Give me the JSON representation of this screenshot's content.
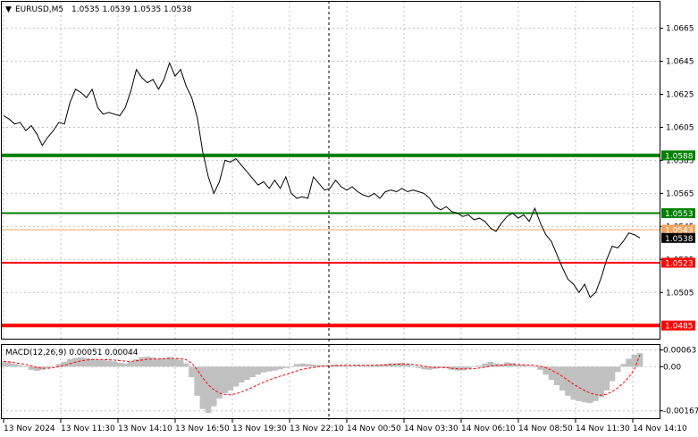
{
  "header": {
    "symbol": "EURUSD,M5",
    "ohlc": "1.0535 1.0539 1.0535 1.0538",
    "dropdown_glyph": "▼"
  },
  "colors": {
    "price_line": "#000000",
    "grid": "#c0c0c0",
    "green_level": "#008000",
    "red_level": "#ff0000",
    "bid_line": "#f4a460",
    "macd_hist": "#c0c0c0",
    "macd_signal": "#ff0000"
  },
  "chart_data": [
    {
      "type": "line",
      "title": "EURUSD,M5",
      "y_ticks": [
        "1.0665",
        "1.0645",
        "1.0625",
        "1.0605",
        "1.0585",
        "1.0565",
        "1.0545",
        "1.0525",
        "1.0505"
      ],
      "x_ticks": [
        "13 Nov 2024",
        "13 Nov 11:30",
        "13 Nov 14:10",
        "13 Nov 16:50",
        "13 Nov 19:30",
        "13 Nov 22:10",
        "14 Nov 00:50",
        "14 Nov 03:30",
        "14 Nov 06:10",
        "14 Nov 08:50",
        "14 Nov 11:30",
        "14 Nov 14:10"
      ],
      "ylim": [
        1.0477,
        1.0681
      ],
      "grid": true,
      "price_series": [
        1.0612,
        1.061,
        1.0607,
        1.0608,
        1.0603,
        1.0606,
        1.0601,
        1.0594,
        1.0599,
        1.0603,
        1.0608,
        1.0607,
        1.062,
        1.0628,
        1.0626,
        1.0623,
        1.0628,
        1.0617,
        1.0613,
        1.0614,
        1.0613,
        1.0612,
        1.0617,
        1.0627,
        1.064,
        1.0635,
        1.0632,
        1.0634,
        1.0628,
        1.0634,
        1.0644,
        1.0636,
        1.064,
        1.063,
        1.0623,
        1.0611,
        1.059,
        1.0575,
        1.0565,
        1.0572,
        1.0585,
        1.0584,
        1.0586,
        1.0582,
        1.0578,
        1.0574,
        1.057,
        1.0572,
        1.0568,
        1.0573,
        1.0568,
        1.0575,
        1.0565,
        1.0562,
        1.0563,
        1.0562,
        1.0575,
        1.0571,
        1.0567,
        1.0568,
        1.0573,
        1.0569,
        1.0567,
        1.0569,
        1.0566,
        1.0564,
        1.0563,
        1.0565,
        1.0562,
        1.0566,
        1.0567,
        1.0566,
        1.0568,
        1.0566,
        1.0567,
        1.0566,
        1.0565,
        1.0562,
        1.0557,
        1.0555,
        1.0557,
        1.0554,
        1.0553,
        1.0551,
        1.0552,
        1.0549,
        1.055,
        1.0548,
        1.0544,
        1.0542,
        1.0547,
        1.0551,
        1.0553,
        1.055,
        1.0552,
        1.0548,
        1.0556,
        1.0547,
        1.054,
        1.0536,
        1.0528,
        1.052,
        1.0513,
        1.051,
        1.0505,
        1.051,
        1.0502,
        1.0505,
        1.0514,
        1.0525,
        1.0533,
        1.0532,
        1.0536,
        1.0541,
        1.054,
        1.0538
      ],
      "levels": [
        {
          "value": 1.0588,
          "label": "1.0588",
          "color": "#008000",
          "style": "thick"
        },
        {
          "value": 1.0553,
          "label": "1.0553",
          "color": "#008000",
          "style": "thin"
        },
        {
          "value": 1.0543,
          "label": "1.0543",
          "color": "#f4a460",
          "style": "thin"
        },
        {
          "value": 1.0538,
          "label": "1.0538",
          "color": "#000000",
          "style": "bid"
        },
        {
          "value": 1.0523,
          "label": "1.0523",
          "color": "#ff0000",
          "style": "thin"
        },
        {
          "value": 1.0485,
          "label": "1.0485",
          "color": "#ff0000",
          "style": "thick"
        }
      ]
    },
    {
      "type": "bar",
      "title": "MACD(12,26,9) 0.00051 0.00044",
      "y_ticks": [
        "0.00063",
        "0.00",
        "-0.00167"
      ],
      "ylim": [
        -0.00195,
        0.00082
      ],
      "histogram": [
        0.0002,
        0.00016,
        0.0001,
        5e-05,
        -2e-05,
        -0.00012,
        -0.00016,
        -0.00012,
        -5e-05,
        2e-05,
        0.0001,
        0.00018,
        0.00028,
        0.00033,
        0.00035,
        0.00032,
        0.0003,
        0.00027,
        0.00025,
        0.00023,
        0.0002,
        0.00015,
        0.00012,
        0.00018,
        0.00028,
        0.00036,
        0.00038,
        0.00034,
        0.0003,
        0.00032,
        0.00036,
        0.0003,
        0.00026,
        0.00012,
        -0.0004,
        -0.0011,
        -0.0016,
        -0.00175,
        -0.0015,
        -0.0012,
        -0.001,
        -0.0009,
        -0.00075,
        -0.0006,
        -0.0005,
        -0.0004,
        -0.0003,
        -0.00022,
        -0.00018,
        -0.00015,
        -0.0001,
        -5e-05,
        2e-05,
        0.0001,
        0.00012,
        0.0001,
        8e-05,
        6e-05,
        5e-05,
        6e-05,
        8e-05,
        6e-05,
        4e-05,
        5e-05,
        7e-05,
        6e-05,
        5e-05,
        6e-05,
        8e-05,
        0.0001,
        0.00012,
        0.00013,
        0.00014,
        0.0001,
        2e-05,
        -5e-05,
        -0.0001,
        -0.00012,
        -8e-05,
        -4e-05,
        -6e-05,
        -0.00012,
        -0.00015,
        -0.00014,
        -8e-05,
        -2e-05,
        4e-05,
        0.00012,
        0.00018,
        0.00012,
        0.0001,
        0.00016,
        0.00014,
        8e-05,
        6e-05,
        2e-05,
        0.0,
        -0.00012,
        -0.0003,
        -0.0005,
        -0.0007,
        -0.0009,
        -0.0011,
        -0.00125,
        -0.0013,
        -0.00135,
        -0.00138,
        -0.0013,
        -0.00115,
        -0.0009,
        -0.00055,
        -0.0002,
        0.0001,
        0.0003,
        0.00045,
        0.00051
      ],
      "signal": [
        0.0002,
        0.00018,
        0.00015,
        0.00012,
        8e-05,
        3e-05,
        -3e-05,
        -6e-05,
        -6e-05,
        -4e-05,
        0.0,
        5e-05,
        0.00011,
        0.00017,
        0.00022,
        0.00025,
        0.00027,
        0.00027,
        0.00027,
        0.00026,
        0.00025,
        0.00023,
        0.00021,
        0.0002,
        0.00022,
        0.00025,
        0.00028,
        0.00029,
        0.00029,
        0.0003,
        0.00031,
        0.00031,
        0.0003,
        0.00026,
        0.00013,
        -0.00012,
        -0.00042,
        -0.00069,
        -0.00087,
        -0.001,
        -0.00105,
        -0.00106,
        -0.00102,
        -0.00096,
        -0.00087,
        -0.00078,
        -0.00068,
        -0.00059,
        -0.0005,
        -0.00043,
        -0.00036,
        -0.0003,
        -0.00023,
        -0.00016,
        -0.0001,
        -6e-05,
        -3e-05,
        0.0,
        2e-05,
        3e-05,
        4e-05,
        5e-05,
        5e-05,
        5e-05,
        5e-05,
        5e-05,
        5e-05,
        5e-05,
        6e-05,
        7e-05,
        8e-05,
        9e-05,
        0.0001,
        0.0001,
        8e-05,
        5e-05,
        2e-05,
        -1e-05,
        -3e-05,
        -3e-05,
        -4e-05,
        -6e-05,
        -8e-05,
        -9e-05,
        -9e-05,
        -8e-05,
        -5e-05,
        -2e-05,
        2e-05,
        4e-05,
        5e-05,
        7e-05,
        8e-05,
        8e-05,
        7e-05,
        6e-05,
        5e-05,
        2e-05,
        -4e-05,
        -0.00013,
        -0.00024,
        -0.00037,
        -0.00052,
        -0.00066,
        -0.00079,
        -0.0009,
        -0.001,
        -0.00106,
        -0.00108,
        -0.00104,
        -0.00094,
        -0.0008,
        -0.00062,
        -0.0004,
        -0.0001,
        0.00044
      ]
    }
  ]
}
